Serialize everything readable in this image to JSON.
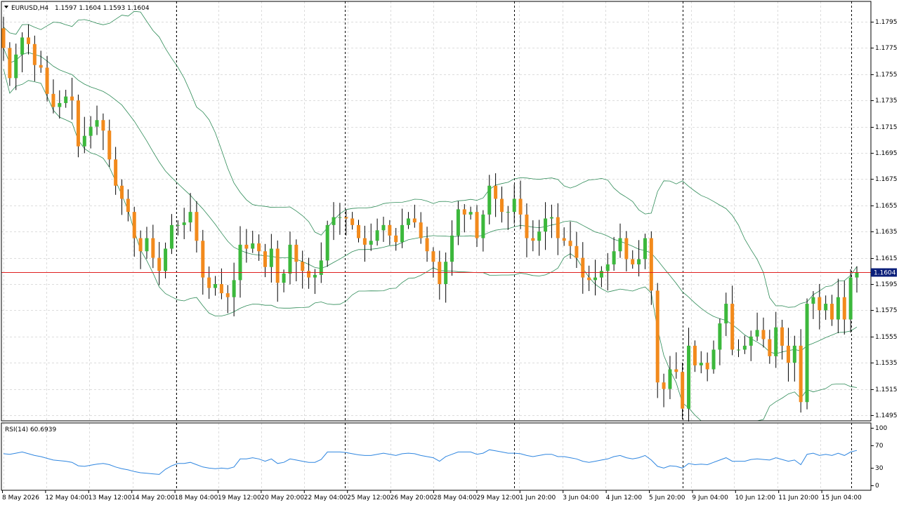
{
  "header": {
    "symbol_timeframe": "EURUSD,H4",
    "ohlc": "1.1597 1.1604 1.1593 1.1604"
  },
  "colors": {
    "bull": "#3cb83c",
    "bear": "#f28a1c",
    "wick": "#000000",
    "bands": "#2e8b57",
    "rsi": "#2f86e0",
    "price_line": "#e02020",
    "grid": "#dcdcdc",
    "price_tag_bg": "#0b1f7a"
  },
  "chart_data": [
    {
      "type": "candlestick",
      "symbol": "EURUSD",
      "timeframe": "H4",
      "current_price": "1.1604",
      "ylim": [
        1.1485,
        1.1805
      ],
      "y_ticks": [
        "1.1795",
        "1.1775",
        "1.1755",
        "1.1735",
        "1.1715",
        "1.1695",
        "1.1675",
        "1.1655",
        "1.1635",
        "1.1615",
        "1.1595",
        "1.1575",
        "1.1555",
        "1.1535",
        "1.1515",
        "1.1495"
      ],
      "x_ticks": [
        "8 May 2026",
        "12 May 04:00",
        "13 May 12:00",
        "14 May 20:00",
        "18 May 04:00",
        "19 May 12:00",
        "20 May 20:00",
        "22 May 04:00",
        "25 May 12:00",
        "26 May 20:00",
        "28 May 04:00",
        "29 May 12:00",
        "1 Jun 20:00",
        "3 Jun 04:00",
        "4 Jun 12:00",
        "5 Jun 20:00",
        "9 Jun 04:00",
        "10 Jun 12:00",
        "11 Jun 20:00",
        "15 Jun 04:00"
      ],
      "closes": [
        1.1775,
        1.1752,
        1.177,
        1.1783,
        1.1778,
        1.1762,
        1.176,
        1.174,
        1.173,
        1.1733,
        1.1738,
        1.1735,
        1.17,
        1.1708,
        1.1715,
        1.172,
        1.1712,
        1.169,
        1.167,
        1.166,
        1.165,
        1.163,
        1.162,
        1.163,
        1.1615,
        1.1605,
        1.1622,
        1.164,
        1.164,
        1.1642,
        1.165,
        1.1628,
        1.16,
        1.1592,
        1.1595,
        1.1588,
        1.1585,
        1.1598,
        1.1625,
        1.1622,
        1.1626,
        1.162,
        1.1608,
        1.1622,
        1.1596,
        1.1603,
        1.1625,
        1.1612,
        1.1605,
        1.16,
        1.1602,
        1.1613,
        1.164,
        1.1646,
        1.1646,
        1.1645,
        1.164,
        1.163,
        1.1625,
        1.1628,
        1.1636,
        1.164,
        1.1632,
        1.1627,
        1.164,
        1.1645,
        1.1642,
        1.163,
        1.162,
        1.1612,
        1.1595,
        1.1612,
        1.1632,
        1.1652,
        1.1648,
        1.165,
        1.163,
        1.1648,
        1.167,
        1.166,
        1.165,
        1.165,
        1.166,
        1.1648,
        1.163,
        1.1628,
        1.1635,
        1.1645,
        1.1646,
        1.163,
        1.1628,
        1.1624,
        1.1615,
        1.16,
        1.1598,
        1.16,
        1.1605,
        1.161,
        1.162,
        1.163,
        1.1614,
        1.161,
        1.1614,
        1.163,
        1.159,
        1.152,
        1.1515,
        1.153,
        1.1528,
        1.15,
        1.1548,
        1.1533,
        1.1535,
        1.153,
        1.1545,
        1.1565,
        1.158,
        1.1545,
        1.1545,
        1.1548,
        1.1555,
        1.156,
        1.1553,
        1.154,
        1.1562,
        1.1548,
        1.1535,
        1.1548,
        1.1505,
        1.158,
        1.1585,
        1.1575,
        1.158,
        1.1568,
        1.1585,
        1.1568,
        1.16,
        1.1604
      ],
      "indicator": "Bollinger Bands",
      "sub_chart": {
        "type": "line",
        "label": "RSI(14) 60.6939",
        "ylim": [
          0,
          100
        ],
        "y_ticks": [
          "100",
          "70",
          "30",
          "0"
        ],
        "values": [
          55,
          54,
          56,
          58,
          55,
          52,
          50,
          47,
          44,
          43,
          42,
          40,
          34,
          33,
          35,
          37,
          38,
          36,
          32,
          29,
          27,
          24,
          22,
          21,
          20,
          19,
          28,
          34,
          38,
          38,
          40,
          36,
          32,
          30,
          29,
          30,
          29,
          32,
          46,
          46,
          48,
          46,
          42,
          46,
          38,
          40,
          46,
          44,
          42,
          40,
          40,
          45,
          58,
          58,
          58,
          57,
          55,
          53,
          52,
          52,
          54,
          56,
          54,
          52,
          55,
          56,
          55,
          52,
          50,
          48,
          42,
          50,
          54,
          58,
          58,
          58,
          54,
          56,
          62,
          60,
          58,
          56,
          56,
          55,
          52,
          50,
          52,
          54,
          54,
          50,
          50,
          48,
          46,
          42,
          40,
          42,
          44,
          46,
          50,
          52,
          48,
          46,
          48,
          52,
          44,
          33,
          30,
          34,
          33,
          30,
          38,
          36,
          37,
          36,
          40,
          44,
          48,
          42,
          42,
          42,
          45,
          46,
          45,
          44,
          48,
          45,
          42,
          44,
          36,
          54,
          56,
          52,
          54,
          52,
          56,
          52,
          58,
          60.69
        ]
      }
    }
  ]
}
